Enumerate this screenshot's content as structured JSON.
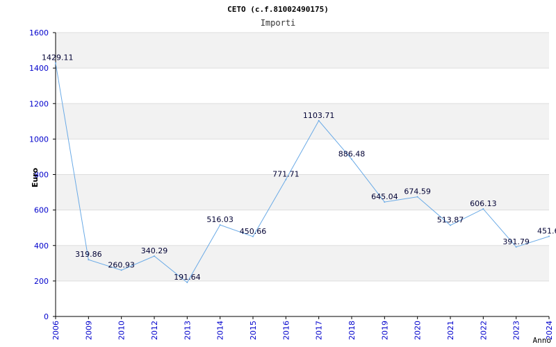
{
  "chart_data": {
    "type": "line",
    "title": "CETO (c.f.81002490175)",
    "subtitle": "Importi",
    "xlabel": "Anno",
    "ylabel": "Euro",
    "ylim": [
      0,
      1600
    ],
    "yticks": [
      0,
      200,
      400,
      600,
      800,
      1000,
      1200,
      1400,
      1600
    ],
    "grid": true,
    "categories": [
      "2006",
      "2009",
      "2010",
      "2012",
      "2013",
      "2014",
      "2015",
      "2016",
      "2017",
      "2018",
      "2019",
      "2020",
      "2021",
      "2022",
      "2023",
      "2024"
    ],
    "values": [
      1429.11,
      319.86,
      260.93,
      340.29,
      191.64,
      516.03,
      450.66,
      771.71,
      1103.71,
      886.48,
      645.04,
      674.59,
      513.87,
      606.13,
      391.79,
      451.6
    ],
    "labels": [
      "1429.11",
      "319.86",
      "260.93",
      "340.29",
      "191.64",
      "516.03",
      "450.66",
      "771.71",
      "1103.71",
      "886.48",
      "645.04",
      "674.59",
      "513.87",
      "606.13",
      "391.79",
      "451.6"
    ],
    "colors": {
      "line": "#6aaae6",
      "band": "#f2f2f2",
      "grid": "#dddddd",
      "axis": "#000000",
      "tick_text": "#0000cc"
    }
  }
}
